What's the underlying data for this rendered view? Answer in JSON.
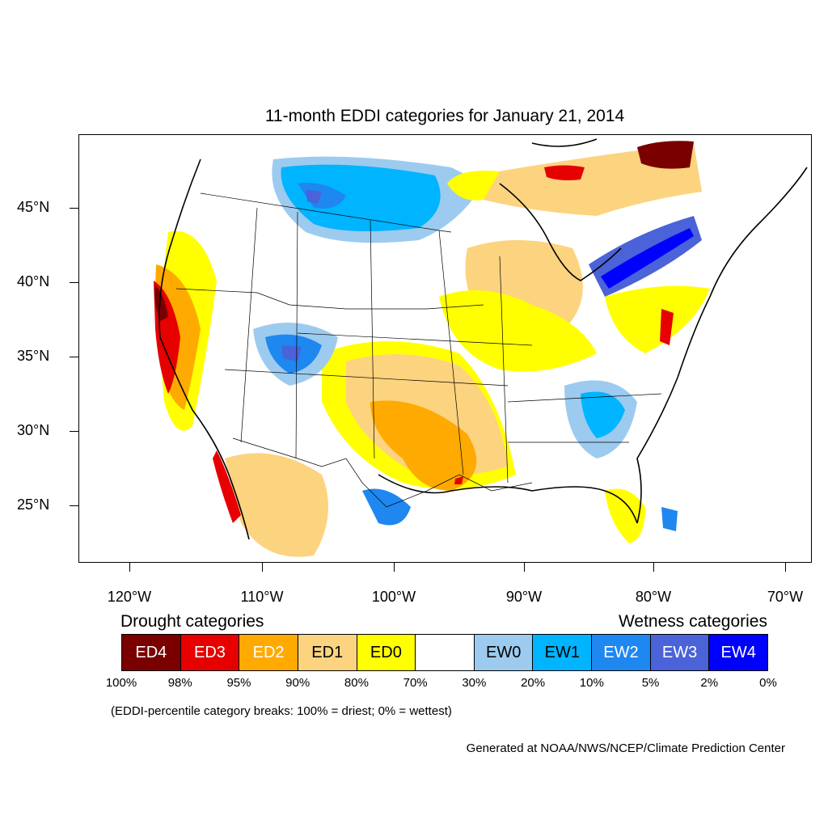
{
  "title": "11-month EDDI categories for January 21, 2014",
  "lat_labels": [
    "45°N",
    "40°N",
    "35°N",
    "30°N",
    "25°N"
  ],
  "lon_labels": [
    "120°W",
    "110°W",
    "100°W",
    "90°W",
    "80°W",
    "70°W"
  ],
  "legend": {
    "drought_heading": "Drought categories",
    "wetness_heading": "Wetness categories",
    "categories": [
      {
        "label": "ED4",
        "color": "#7a0000",
        "text_color": "#ffffff"
      },
      {
        "label": "ED3",
        "color": "#e60000",
        "text_color": "#ffffff"
      },
      {
        "label": "ED2",
        "color": "#ffaa00",
        "text_color": "#ffffff"
      },
      {
        "label": "ED1",
        "color": "#fcd37f",
        "text_color": "#000000"
      },
      {
        "label": "ED0",
        "color": "#ffff00",
        "text_color": "#000000"
      },
      {
        "label": "",
        "color": "#ffffff",
        "text_color": "#000000"
      },
      {
        "label": "EW0",
        "color": "#9ccbef",
        "text_color": "#000000"
      },
      {
        "label": "EW1",
        "color": "#00b4ff",
        "text_color": "#000000"
      },
      {
        "label": "EW2",
        "color": "#1e87f0",
        "text_color": "#ffffff"
      },
      {
        "label": "EW3",
        "color": "#4a63d8",
        "text_color": "#ffffff"
      },
      {
        "label": "EW4",
        "color": "#0000ff",
        "text_color": "#ffffff"
      }
    ],
    "breaks": [
      "100%",
      "98%",
      "95%",
      "90%",
      "80%",
      "70%",
      "30%",
      "20%",
      "10%",
      "5%",
      "2%",
      "0%"
    ]
  },
  "note": "(EDDI-percentile category breaks: 100% = driest; 0% = wettest)",
  "credit": "Generated at NOAA/NWS/NCEP/Climate Prediction Center"
}
